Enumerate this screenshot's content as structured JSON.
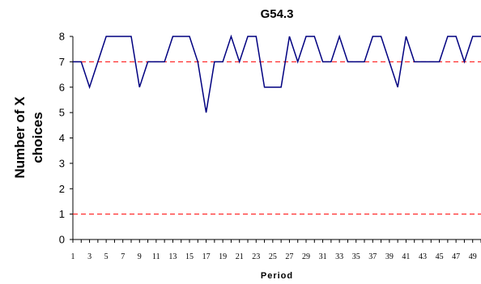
{
  "chart_data": {
    "type": "line",
    "title": "G54.3",
    "xlabel": "Period",
    "ylabel_lines": [
      "Number of X",
      "choices"
    ],
    "x": [
      1,
      2,
      3,
      4,
      5,
      6,
      7,
      8,
      9,
      10,
      11,
      12,
      13,
      14,
      15,
      16,
      17,
      18,
      19,
      20,
      21,
      22,
      23,
      24,
      25,
      26,
      27,
      28,
      29,
      30,
      31,
      32,
      33,
      34,
      35,
      36,
      37,
      38,
      39,
      40,
      41,
      42,
      43,
      44,
      45,
      46,
      47,
      48,
      49,
      50
    ],
    "x_tick_labels": [
      "1",
      "3",
      "5",
      "7",
      "9",
      "11",
      "13",
      "15",
      "17",
      "19",
      "21",
      "23",
      "25",
      "27",
      "29",
      "31",
      "33",
      "35",
      "37",
      "39",
      "41",
      "43",
      "45",
      "47",
      "49"
    ],
    "xlim": [
      1,
      50
    ],
    "ylim": [
      0,
      8
    ],
    "y_ticks": [
      "0",
      "1",
      "2",
      "3",
      "4",
      "5",
      "6",
      "7",
      "8"
    ],
    "series": [
      {
        "color": "#000080",
        "values": [
          7,
          7,
          6,
          7,
          8,
          8,
          8,
          8,
          6,
          7,
          7,
          7,
          8,
          8,
          8,
          7,
          5,
          7,
          7,
          8,
          7,
          8,
          8,
          6,
          6,
          6,
          8,
          7,
          8,
          8,
          7,
          7,
          8,
          7,
          7,
          7,
          8,
          8,
          7,
          6,
          8,
          7,
          7,
          7,
          7,
          8,
          8,
          7,
          8,
          8
        ]
      }
    ],
    "reference_lines": [
      {
        "y": 7,
        "color": "#ff0000",
        "style": "dashed"
      },
      {
        "y": 1,
        "color": "#ff0000",
        "style": "dashed"
      }
    ],
    "grid": false,
    "legend": "none"
  }
}
